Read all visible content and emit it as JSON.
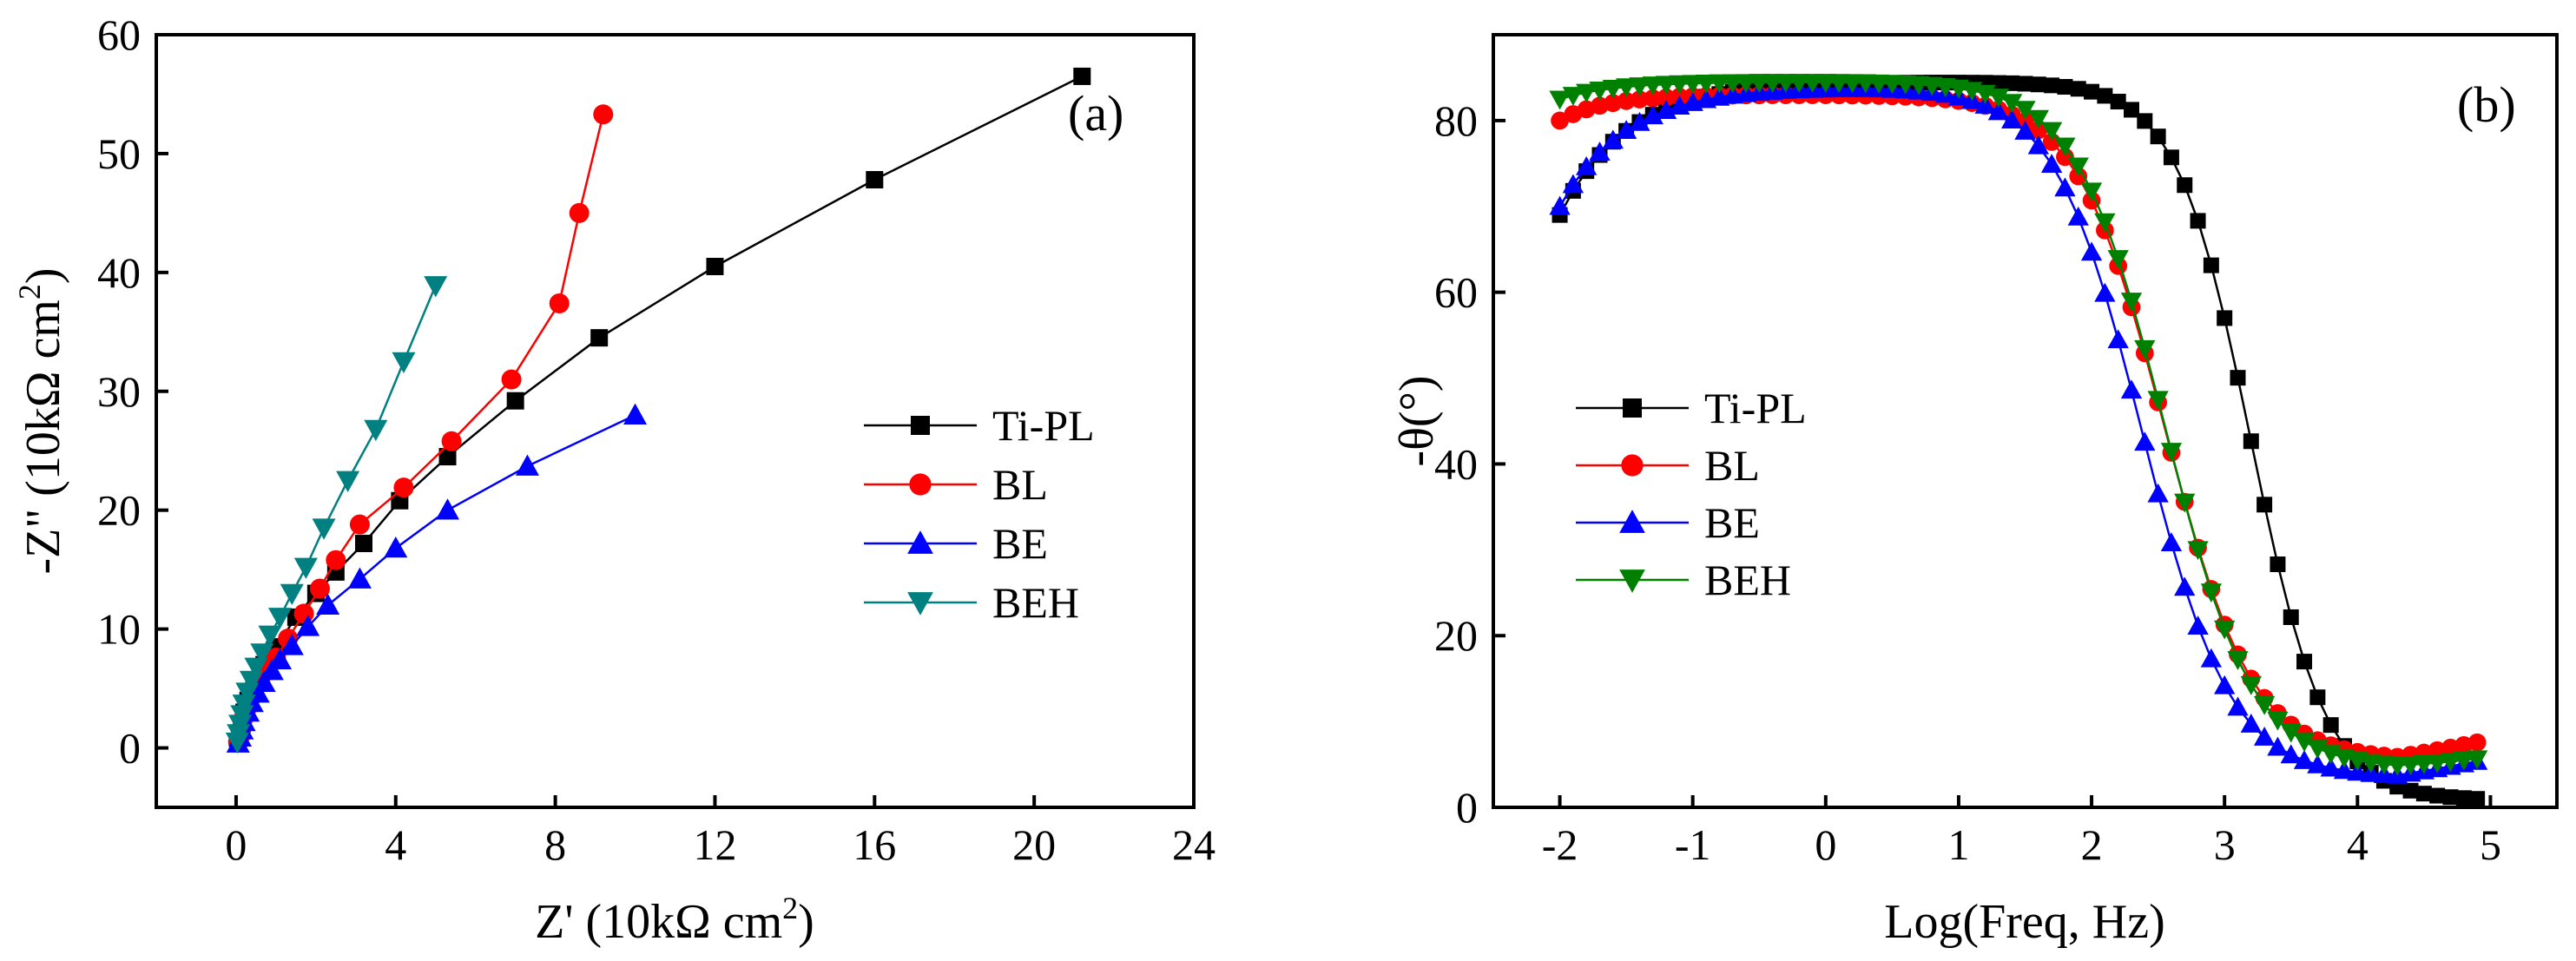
{
  "chart_data": [
    {
      "type": "scatter",
      "panel_label": "(a)",
      "xlabel": "Z' (10kΩ cm",
      "xlabel_sup": "2",
      "xlabel_end": ")",
      "ylabel": "-Z\" (10kΩ cm",
      "ylabel_sup": "2",
      "ylabel_end": ")",
      "xlim": [
        -2,
        24
      ],
      "ylim": [
        -5,
        60
      ],
      "xticks": [
        0,
        4,
        8,
        12,
        16,
        20,
        24
      ],
      "yticks": [
        0,
        10,
        20,
        30,
        40,
        50,
        60
      ],
      "legend_position": "right-middle",
      "series": [
        {
          "name": "Ti-PL",
          "color": "#000000",
          "marker": "square",
          "x": [
            0.05,
            0.1,
            0.15,
            0.2,
            0.3,
            0.45,
            0.7,
            1.0,
            1.5,
            2.0,
            2.5,
            3.2,
            4.1,
            5.3,
            7.0,
            9.1,
            12.0,
            16.0,
            21.2
          ],
          "y": [
            0.5,
            1.2,
            2.0,
            3.0,
            4.0,
            5.5,
            7.0,
            8.5,
            11.0,
            13.0,
            14.8,
            17.2,
            20.8,
            24.5,
            29.2,
            34.5,
            40.5,
            47.8,
            56.5
          ]
        },
        {
          "name": "BL",
          "color": "#ff0000",
          "marker": "circle",
          "x": [
            0.05,
            0.1,
            0.15,
            0.2,
            0.3,
            0.45,
            0.6,
            0.8,
            1.0,
            1.3,
            1.7,
            2.1,
            2.5,
            3.1,
            4.2,
            5.4,
            6.9,
            8.1,
            8.6,
            9.2
          ],
          "y": [
            0.5,
            1.0,
            1.8,
            2.6,
            3.5,
            4.5,
            5.5,
            6.5,
            7.6,
            9.2,
            11.3,
            13.4,
            15.8,
            18.8,
            21.9,
            25.8,
            31.0,
            37.4,
            45.0,
            53.3
          ]
        },
        {
          "name": "BE",
          "color": "#0000ff",
          "marker": "triangle-up",
          "x": [
            0.05,
            0.1,
            0.15,
            0.2,
            0.3,
            0.4,
            0.55,
            0.7,
            0.9,
            1.1,
            1.4,
            1.8,
            2.3,
            3.1,
            4.0,
            5.3,
            7.3,
            10.0
          ],
          "y": [
            0.4,
            0.9,
            1.5,
            2.2,
            3.0,
            3.8,
            4.6,
            5.5,
            6.5,
            7.4,
            8.6,
            10.2,
            12.0,
            14.2,
            16.8,
            20.0,
            23.7,
            28.0
          ]
        },
        {
          "name": "BEH",
          "color": "#008080",
          "marker": "triangle-down",
          "x": [
            0.03,
            0.06,
            0.1,
            0.15,
            0.2,
            0.28,
            0.38,
            0.5,
            0.65,
            0.85,
            1.1,
            1.4,
            1.75,
            2.2,
            2.8,
            3.5,
            4.2,
            5.0
          ],
          "y": [
            0.5,
            1.2,
            2.0,
            2.8,
            3.7,
            4.7,
            5.7,
            6.8,
            8.0,
            9.5,
            11.0,
            13.0,
            15.2,
            18.5,
            22.5,
            26.8,
            32.5,
            38.9
          ]
        }
      ]
    },
    {
      "type": "scatter",
      "panel_label": "(b)",
      "xlabel": "Log(Freq, Hz)",
      "ylabel": "-θ(°)",
      "xlim": [
        -2.5,
        5.5
      ],
      "ylim": [
        0,
        90
      ],
      "xticks": [
        -2,
        -1,
        0,
        1,
        2,
        3,
        4,
        5
      ],
      "yticks": [
        0,
        20,
        40,
        60,
        80
      ],
      "legend_position": "left-middle",
      "series": [
        {
          "name": "Ti-PL",
          "color": "#000000",
          "marker": "square",
          "curve": {
            "low_freq": 69,
            "plateau": 84.5,
            "rise": 0.5,
            "center": 3.2,
            "width": 0.28,
            "tail": 0.8,
            "tail_rise": 0.0
          }
        },
        {
          "name": "BL",
          "color": "#ff0000",
          "marker": "circle",
          "curve": {
            "low_freq": 80,
            "plateau": 83,
            "rise": 0.35,
            "center": 2.55,
            "width": 0.33,
            "tail": 5.5,
            "tail_rise": 2.2
          }
        },
        {
          "name": "BE",
          "color": "#0000ff",
          "marker": "triangle-up",
          "curve": {
            "low_freq": 70,
            "plateau": 84,
            "rise": 0.5,
            "center": 2.38,
            "width": 0.33,
            "tail": 3.5,
            "tail_rise": 2.0
          }
        },
        {
          "name": "BEH",
          "color": "#008000",
          "marker": "triangle-down",
          "curve": {
            "low_freq": 82.5,
            "plateau": 84.5,
            "rise": 0.4,
            "center": 2.55,
            "width": 0.33,
            "tail": 4.5,
            "tail_rise": 1.2
          }
        }
      ]
    }
  ]
}
